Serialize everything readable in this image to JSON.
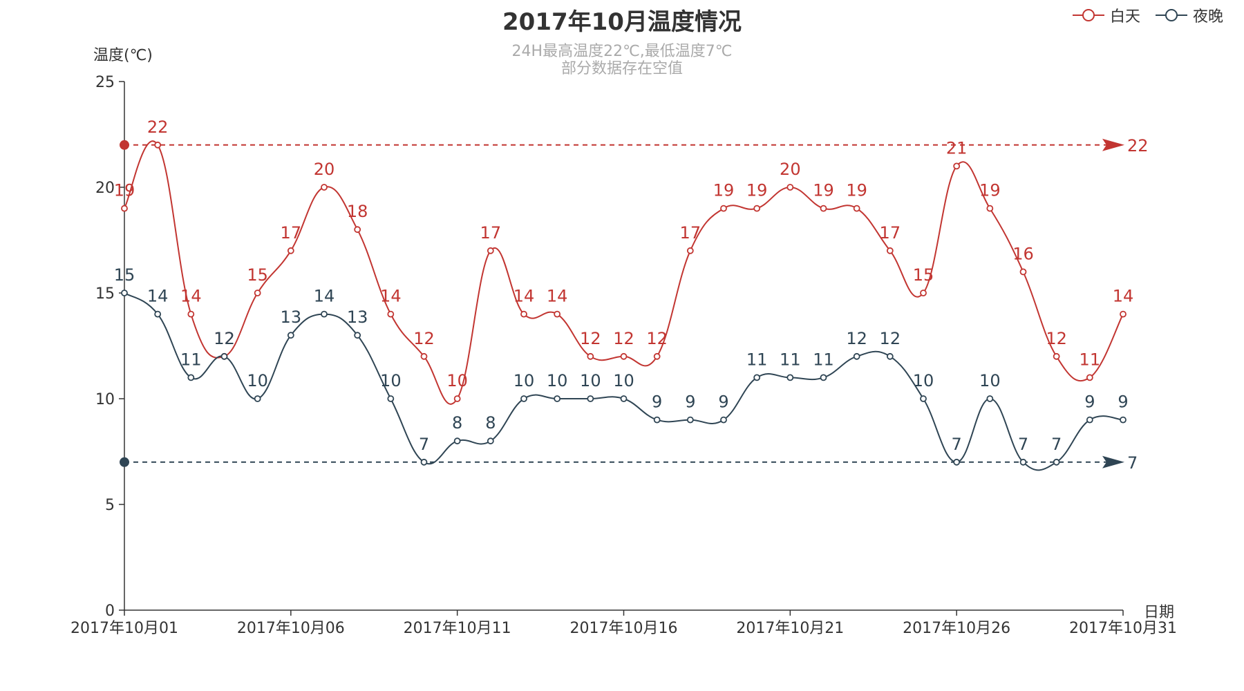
{
  "title": "2017年10月温度情况",
  "subtitle_line1": "24H最高温度22℃,最低温度7℃",
  "subtitle_line2": "部分数据存在空值",
  "ylabel": "温度(℃)",
  "xlabel": "日期",
  "legend": [
    {
      "name": "白天",
      "color": "#c23531"
    },
    {
      "name": "夜晚",
      "color": "#2f4554"
    }
  ],
  "chart_data": {
    "type": "line",
    "title": "2017年10月温度情况",
    "xlabel": "日期",
    "ylabel": "温度(℃)",
    "ylim": [
      0,
      25
    ],
    "yticks": [
      0,
      5,
      10,
      15,
      20,
      25
    ],
    "x_tick_labels": [
      "2017年10月01",
      "2017年10月06",
      "2017年10月11",
      "2017年10月16",
      "2017年10月21",
      "2017年10月26",
      "2017年10月31"
    ],
    "x": [
      "2017年10月01",
      "2017年10月02",
      "2017年10月03",
      "2017年10月04",
      "2017年10月05",
      "2017年10月06",
      "2017年10月07",
      "2017年10月08",
      "2017年10月09",
      "2017年10月10",
      "2017年10月11",
      "2017年10月12",
      "2017年10月13",
      "2017年10月14",
      "2017年10月15",
      "2017年10月16",
      "2017年10月17",
      "2017年10月18",
      "2017年10月19",
      "2017年10月20",
      "2017年10月21",
      "2017年10月22",
      "2017年10月23",
      "2017年10月24",
      "2017年10月25",
      "2017年10月26",
      "2017年10月27",
      "2017年10月28",
      "2017年10月29",
      "2017年10月30",
      "2017年10月31"
    ],
    "legend_position": "top-right",
    "smooth": true,
    "series": [
      {
        "name": "白天",
        "color": "#c23531",
        "values": [
          19,
          22,
          14,
          12,
          15,
          17,
          20,
          18,
          14,
          12,
          10,
          17,
          14,
          14,
          12,
          12,
          12,
          17,
          19,
          19,
          20,
          19,
          19,
          17,
          15,
          21,
          19,
          16,
          12,
          11,
          14
        ],
        "markline_value": 22
      },
      {
        "name": "夜晚",
        "color": "#2f4554",
        "values": [
          15,
          14,
          11,
          12,
          10,
          13,
          14,
          13,
          10,
          7,
          8,
          8,
          10,
          10,
          10,
          10,
          9,
          9,
          9,
          11,
          11,
          11,
          12,
          12,
          10,
          7,
          10,
          7,
          7,
          9,
          9
        ],
        "markline_value": 7
      }
    ]
  }
}
